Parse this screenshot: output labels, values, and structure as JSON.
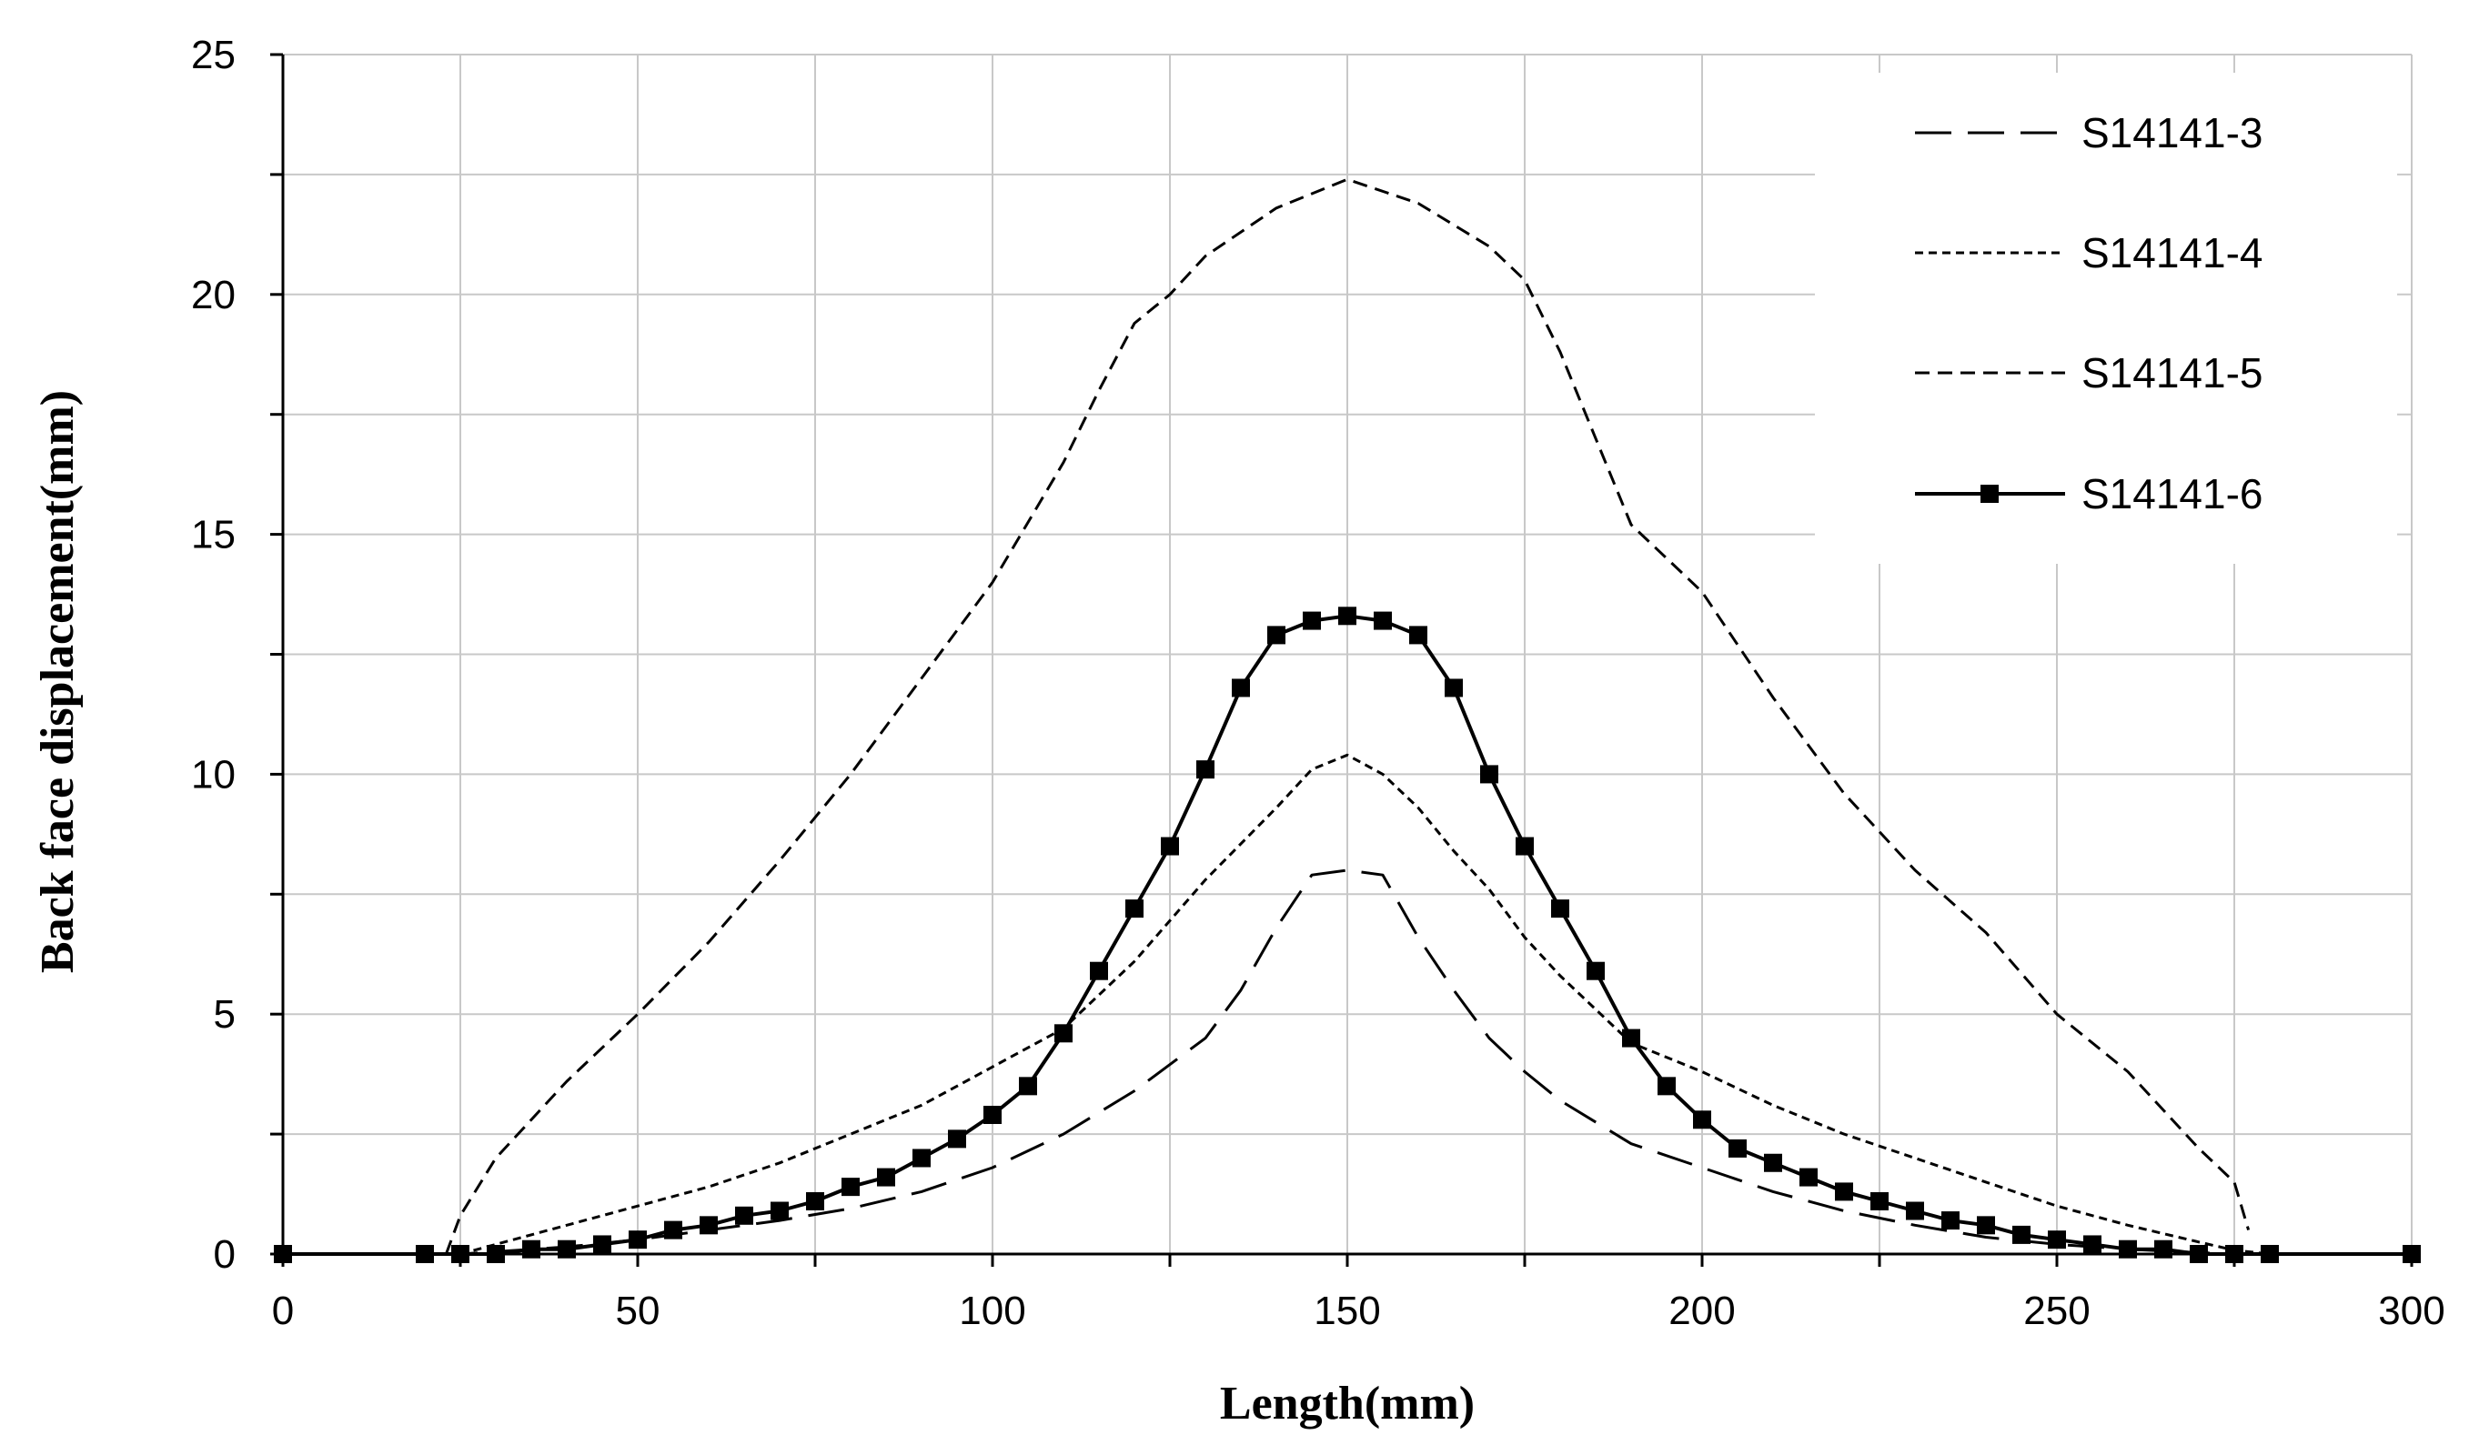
{
  "chart_data": {
    "type": "line",
    "title": "",
    "xlabel": "Length(mm)",
    "ylabel": "Back face displacement(mm)",
    "xlim": [
      0,
      300
    ],
    "ylim": [
      0,
      25
    ],
    "xticks": [
      0,
      50,
      100,
      150,
      200,
      250,
      300
    ],
    "yticks": [
      0,
      5,
      10,
      15,
      20,
      25
    ],
    "grid": true,
    "legend_position": "top-right",
    "series": [
      {
        "name": "S14141-3",
        "style": "long-dash",
        "markers": false,
        "x": [
          0,
          20,
          25,
          30,
          40,
          50,
          60,
          70,
          80,
          90,
          100,
          110,
          120,
          130,
          135,
          140,
          145,
          150,
          155,
          160,
          165,
          170,
          175,
          180,
          190,
          200,
          210,
          220,
          230,
          240,
          250,
          260,
          270,
          275,
          280,
          300
        ],
        "y": [
          0,
          0,
          0,
          0.05,
          0.15,
          0.3,
          0.5,
          0.7,
          0.95,
          1.3,
          1.8,
          2.5,
          3.4,
          4.5,
          5.5,
          6.8,
          7.9,
          8.0,
          7.9,
          6.6,
          5.5,
          4.5,
          3.8,
          3.2,
          2.3,
          1.8,
          1.3,
          0.9,
          0.6,
          0.35,
          0.2,
          0.1,
          0.03,
          0,
          0,
          0
        ]
      },
      {
        "name": "S14141-4",
        "style": "dotted",
        "markers": false,
        "x": [
          0,
          20,
          25,
          30,
          40,
          50,
          60,
          70,
          80,
          90,
          100,
          110,
          120,
          130,
          140,
          145,
          150,
          155,
          160,
          165,
          170,
          175,
          180,
          190,
          200,
          210,
          220,
          230,
          240,
          250,
          260,
          270,
          275,
          280,
          300
        ],
        "y": [
          0,
          0,
          0,
          0.2,
          0.6,
          1.0,
          1.4,
          1.9,
          2.5,
          3.1,
          3.9,
          4.7,
          6.1,
          7.8,
          9.3,
          10.1,
          10.4,
          10.0,
          9.3,
          8.4,
          7.6,
          6.6,
          5.8,
          4.4,
          3.8,
          3.1,
          2.5,
          2.0,
          1.5,
          1.0,
          0.6,
          0.25,
          0.08,
          0,
          0
        ]
      },
      {
        "name": "S14141-5",
        "style": "short-dash",
        "markers": false,
        "x": [
          23,
          25,
          30,
          40,
          50,
          60,
          70,
          80,
          90,
          100,
          110,
          115,
          120,
          125,
          130,
          140,
          150,
          160,
          170,
          175,
          180,
          190,
          200,
          210,
          220,
          230,
          240,
          250,
          260,
          270,
          275,
          277
        ],
        "y": [
          0,
          0.8,
          2.0,
          3.6,
          5.0,
          6.5,
          8.2,
          10.0,
          12.0,
          14.0,
          16.5,
          18.0,
          19.4,
          20.0,
          20.8,
          21.8,
          22.4,
          21.9,
          21.0,
          20.3,
          18.8,
          15.2,
          13.8,
          11.6,
          9.6,
          8.0,
          6.7,
          5.0,
          3.8,
          2.2,
          1.5,
          0.5
        ]
      },
      {
        "name": "S14141-6",
        "style": "solid",
        "markers": true,
        "x": [
          0,
          20,
          25,
          30,
          35,
          40,
          45,
          50,
          55,
          60,
          65,
          70,
          75,
          80,
          85,
          90,
          95,
          100,
          105,
          110,
          115,
          120,
          125,
          130,
          135,
          140,
          145,
          150,
          155,
          160,
          165,
          170,
          175,
          180,
          185,
          190,
          195,
          200,
          205,
          210,
          215,
          220,
          225,
          230,
          235,
          240,
          245,
          250,
          255,
          260,
          265,
          270,
          275,
          280,
          300
        ],
        "y": [
          0,
          0,
          0,
          0,
          0.1,
          0.1,
          0.2,
          0.3,
          0.5,
          0.6,
          0.8,
          0.9,
          1.1,
          1.4,
          1.6,
          2.0,
          2.4,
          2.9,
          3.5,
          4.6,
          5.9,
          7.2,
          8.5,
          10.1,
          11.8,
          12.9,
          13.2,
          13.3,
          13.2,
          12.9,
          11.8,
          10.0,
          8.5,
          7.2,
          5.9,
          4.5,
          3.5,
          2.8,
          2.2,
          1.9,
          1.6,
          1.3,
          1.1,
          0.9,
          0.7,
          0.6,
          0.4,
          0.3,
          0.2,
          0.1,
          0.1,
          0,
          0,
          0,
          0
        ]
      }
    ]
  }
}
